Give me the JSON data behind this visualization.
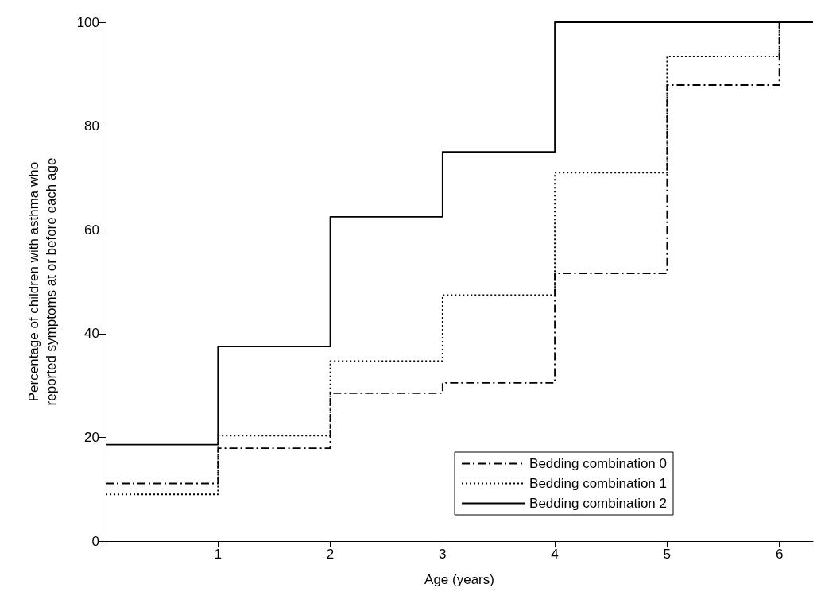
{
  "chart_data": {
    "type": "step",
    "xlabel": "Age (years)",
    "ylabel": "Percentage of children with asthma who\nreported symptoms at or before each age",
    "xlim": [
      0,
      6.3
    ],
    "xticks": [
      1,
      2,
      3,
      4,
      5,
      6
    ],
    "ylim": [
      0,
      100
    ],
    "yticks": [
      0,
      20,
      40,
      60,
      80,
      100
    ],
    "grid": false,
    "legend": "bottom right",
    "marker": "none",
    "series": [
      {
        "name": "Bedding combination 0",
        "color": "#000000",
        "line_style": "dashed",
        "x": [
          0,
          1,
          2,
          3,
          4,
          5,
          6,
          6.3
        ],
        "values": [
          11.1,
          17.9,
          28.5,
          30.5,
          51.6,
          87.9,
          100,
          100
        ]
      },
      {
        "name": "Bedding combination 1",
        "color": "#000000",
        "line_style": "dotted",
        "x": [
          0,
          1,
          2,
          3,
          4,
          5,
          6,
          6.3
        ],
        "values": [
          9,
          20.3,
          34.7,
          47.4,
          71,
          93.4,
          100,
          100
        ]
      },
      {
        "name": "Bedding combination 2",
        "color": "#000000",
        "line_style": "solid",
        "x": [
          0,
          1,
          2,
          3,
          4,
          5,
          6,
          6.3
        ],
        "values": [
          18.6,
          37.5,
          62.5,
          75,
          100,
          100,
          100,
          100
        ]
      }
    ]
  }
}
